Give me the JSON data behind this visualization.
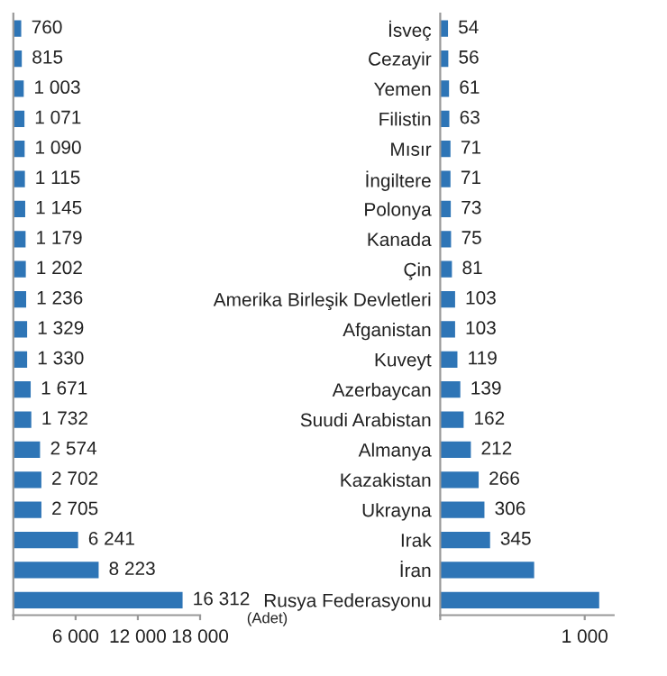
{
  "chart_data": [
    {
      "type": "bar",
      "orientation": "horizontal",
      "color": "#2e75b6",
      "categories": [
        null,
        null,
        null,
        null,
        null,
        null,
        null,
        null,
        null,
        null,
        null,
        null,
        null,
        null,
        null,
        null,
        null,
        null,
        null,
        null
      ],
      "values": [
        760,
        815,
        1003,
        1071,
        1090,
        1115,
        1145,
        1179,
        1202,
        1236,
        1329,
        1330,
        1671,
        1732,
        2574,
        2702,
        2705,
        6241,
        8223,
        16312
      ],
      "value_labels": [
        "760",
        "815",
        "1 003",
        "1 071",
        "1 090",
        "1 115",
        "1 145",
        "1 179",
        "1 202",
        "1 236",
        "1 329",
        "1 330",
        "1 671",
        "1 732",
        "2 574",
        "2 702",
        "2 705",
        "6 241",
        "8 223",
        "16 312"
      ],
      "xlim": [
        0,
        18000
      ],
      "xticks": [
        {
          "value": 0,
          "label": null
        },
        {
          "value": 6000,
          "label": "6 000"
        },
        {
          "value": 12000,
          "label": "12 000"
        },
        {
          "value": 18000,
          "label": "18 000"
        }
      ],
      "annotations": [
        "(Adet)"
      ]
    },
    {
      "type": "bar",
      "orientation": "horizontal",
      "color": "#2e75b6",
      "categories": [
        "İsveç",
        "Cezayir",
        "Yemen",
        "Filistin",
        "Mısır",
        "İngiltere",
        "Polonya",
        "Kanada",
        "Çin",
        "Amerika Birleşik Devletleri",
        "Afganistan",
        "Kuveyt",
        "Azerbaycan",
        "Suudi Arabistan",
        "Almanya",
        "Kazakistan",
        "Ukrayna",
        "Irak",
        "İran",
        "Rusya Federasyonu"
      ],
      "values": [
        54,
        56,
        61,
        63,
        71,
        71,
        73,
        75,
        81,
        103,
        103,
        119,
        139,
        162,
        212,
        266,
        306,
        345,
        650,
        1100
      ],
      "value_labels": [
        "54",
        "56",
        "61",
        "63",
        "71",
        "71",
        "73",
        "75",
        "81",
        "103",
        "103",
        "119",
        "139",
        "162",
        "212",
        "266",
        "306",
        "345",
        null,
        null
      ],
      "xlim": [
        0,
        1200
      ],
      "xticks": [
        {
          "value": 0,
          "label": null
        },
        {
          "value": 1000,
          "label": "1 000"
        }
      ]
    }
  ]
}
